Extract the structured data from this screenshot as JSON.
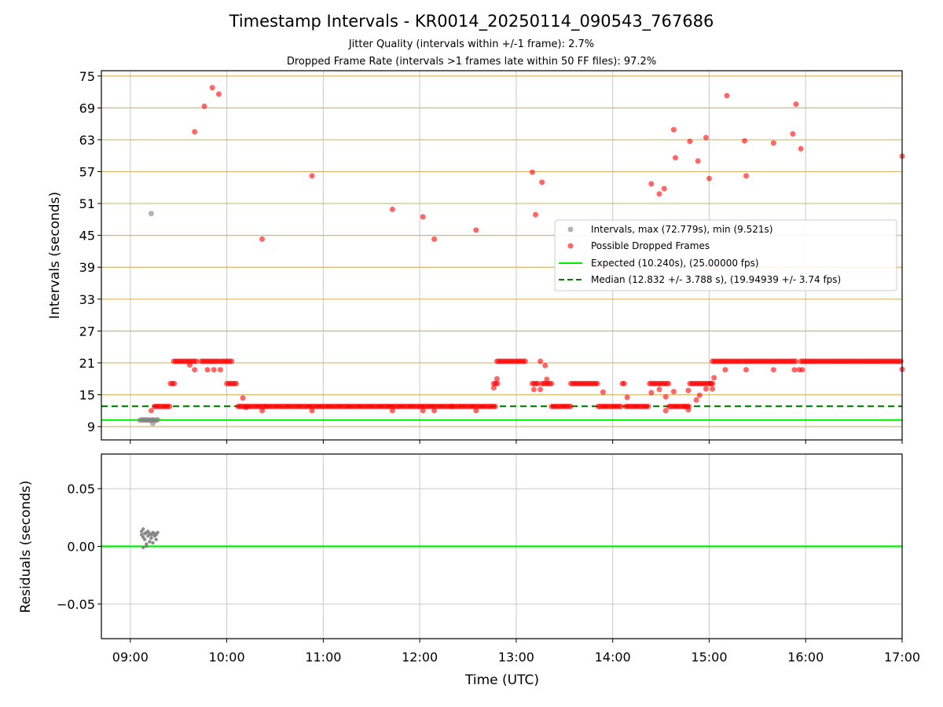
{
  "figure": {
    "title": "Timestamp Intervals - KR0014_20250114_090543_767686",
    "subtitle_jitter": "Jitter Quality (intervals within +/-1 frame): 2.7%",
    "subtitle_dropped": "Dropped Frame Rate (intervals >1 frames late within 50 FF files): 97.2%"
  },
  "colors": {
    "intervals": "#808080",
    "dropped": "#ff0000",
    "expected": "#00ee00",
    "median": "#008000",
    "hline": "#d4b86a",
    "grid": "#c8c8c8"
  },
  "chart_data": [
    {
      "type": "scatter",
      "title": "",
      "xlabel": "Time (UTC)",
      "ylabel": "Intervals (seconds)",
      "x_ticks": [
        "09:00",
        "10:00",
        "11:00",
        "12:00",
        "13:00",
        "14:00",
        "15:00",
        "16:00",
        "17:00"
      ],
      "xlim": [
        "08:42",
        "17:00"
      ],
      "ylim": [
        6.5,
        76
      ],
      "y_ticks": [
        9,
        15,
        21,
        27,
        33,
        39,
        45,
        51,
        57,
        63,
        69,
        75
      ],
      "grid": true,
      "legend_position": "center-right",
      "legend": [
        "Intervals, max (72.779s), min (9.521s)",
        "Possible Dropped Frames",
        "Expected (10.240s), (25.00000 fps)",
        "Median (12.832 +/- 3.788 s), (19.94939 +/- 3.74 fps)"
      ],
      "expected_line": 10.24,
      "median_line": 12.832,
      "series": [
        {
          "name": "Intervals, max (72.779s), min (9.521s)",
          "points": [
            [
              "09:06",
              10.2
            ],
            [
              "09:07",
              10.3
            ],
            [
              "09:08",
              10.2
            ],
            [
              "09:09",
              10.3
            ],
            [
              "09:10",
              10.2
            ],
            [
              "09:11",
              10.3
            ],
            [
              "09:12",
              10.2
            ],
            [
              "09:13",
              10.2
            ],
            [
              "09:14",
              10.3
            ],
            [
              "09:15",
              10.2
            ],
            [
              "09:16",
              10.2
            ],
            [
              "09:17",
              10.3
            ],
            [
              "09:13",
              49.1
            ],
            [
              "09:14",
              9.6
            ]
          ]
        },
        {
          "name": "Possible Dropped Frames",
          "runs": [
            {
              "start": "09:15",
              "end": "09:25",
              "y": 12.8
            },
            {
              "start": "09:25",
              "end": "09:28",
              "y": 17.1
            },
            {
              "start": "09:27",
              "end": "09:42",
              "y": 21.3
            },
            {
              "start": "09:44",
              "end": "09:55",
              "y": 21.3
            },
            {
              "start": "09:56",
              "end": "10:04",
              "y": 21.3
            },
            {
              "start": "10:00",
              "end": "10:07",
              "y": 17.1
            },
            {
              "start": "10:07",
              "end": "10:24",
              "y": 12.8
            },
            {
              "start": "10:24",
              "end": "11:05",
              "y": 12.8
            },
            {
              "start": "11:05",
              "end": "11:40",
              "y": 12.8
            },
            {
              "start": "11:40",
              "end": "12:20",
              "y": 12.8
            },
            {
              "start": "12:20",
              "end": "12:47",
              "y": 12.8
            },
            {
              "start": "12:46",
              "end": "12:49",
              "y": 17.1
            },
            {
              "start": "12:48",
              "end": "13:06",
              "y": 21.3
            },
            {
              "start": "13:10",
              "end": "13:14",
              "y": 17.1
            },
            {
              "start": "13:15",
              "end": "13:16",
              "y": 21.3
            },
            {
              "start": "13:16",
              "end": "13:22",
              "y": 17.1
            },
            {
              "start": "13:22",
              "end": "13:34",
              "y": 12.8
            },
            {
              "start": "13:34",
              "end": "13:51",
              "y": 17.1
            },
            {
              "start": "13:51",
              "end": "14:06",
              "y": 12.8
            },
            {
              "start": "14:06",
              "end": "14:08",
              "y": 17.1
            },
            {
              "start": "14:08",
              "end": "14:23",
              "y": 12.8
            },
            {
              "start": "14:23",
              "end": "14:35",
              "y": 17.1
            },
            {
              "start": "14:35",
              "end": "14:45",
              "y": 12.8
            },
            {
              "start": "14:45",
              "end": "14:48",
              "y": 12.8
            },
            {
              "start": "14:48",
              "end": "15:01",
              "y": 17.1
            },
            {
              "start": "15:01",
              "end": "15:03",
              "y": 17.1
            },
            {
              "start": "15:02",
              "end": "15:20",
              "y": 21.3
            },
            {
              "start": "15:21",
              "end": "15:55",
              "y": 21.3
            },
            {
              "start": "15:57",
              "end": "17:00",
              "y": 21.3
            }
          ],
          "points": [
            [
              "09:40",
              64.5
            ],
            [
              "09:46",
              69.3
            ],
            [
              "09:51",
              72.8
            ],
            [
              "09:55",
              71.6
            ],
            [
              "09:37",
              20.6
            ],
            [
              "09:40",
              19.7
            ],
            [
              "09:48",
              19.7
            ],
            [
              "09:52",
              19.7
            ],
            [
              "09:56",
              19.7
            ],
            [
              "09:13",
              12.0
            ],
            [
              "10:10",
              14.4
            ],
            [
              "10:12",
              12.6
            ],
            [
              "10:22",
              44.3
            ],
            [
              "10:22",
              12.0
            ],
            [
              "10:53",
              56.2
            ],
            [
              "10:53",
              12.0
            ],
            [
              "11:43",
              49.9
            ],
            [
              "11:43",
              12.0
            ],
            [
              "12:02",
              48.5
            ],
            [
              "12:02",
              12.0
            ],
            [
              "12:09",
              44.3
            ],
            [
              "12:09",
              12.0
            ],
            [
              "12:35",
              46.0
            ],
            [
              "12:35",
              12.0
            ],
            [
              "12:46",
              16.3
            ],
            [
              "12:48",
              18.0
            ],
            [
              "13:10",
              56.9
            ],
            [
              "13:12",
              48.9
            ],
            [
              "13:16",
              55.0
            ],
            [
              "13:15",
              16.0
            ],
            [
              "13:18",
              20.5
            ],
            [
              "13:19",
              17.9
            ],
            [
              "13:11",
              16.0
            ],
            [
              "13:54",
              15.5
            ],
            [
              "14:09",
              14.5
            ],
            [
              "14:24",
              54.7
            ],
            [
              "14:29",
              52.8
            ],
            [
              "14:32",
              53.8
            ],
            [
              "14:24",
              15.4
            ],
            [
              "14:29",
              16.0
            ],
            [
              "14:33",
              14.6
            ],
            [
              "14:33",
              12.0
            ],
            [
              "14:38",
              64.9
            ],
            [
              "14:39",
              59.6
            ],
            [
              "14:48",
              62.7
            ],
            [
              "14:47",
              15.8
            ],
            [
              "14:47",
              12.2
            ],
            [
              "14:53",
              59.0
            ],
            [
              "14:58",
              63.4
            ],
            [
              "15:00",
              55.7
            ],
            [
              "14:54",
              14.9
            ],
            [
              "14:52",
              14.0
            ],
            [
              "14:38",
              15.6
            ],
            [
              "14:58",
              16.1
            ],
            [
              "15:02",
              16.1
            ],
            [
              "15:03",
              18.2
            ],
            [
              "15:11",
              71.3
            ],
            [
              "15:10",
              19.7
            ],
            [
              "15:22",
              62.8
            ],
            [
              "15:23",
              56.2
            ],
            [
              "15:23",
              19.7
            ],
            [
              "15:40",
              62.4
            ],
            [
              "15:40",
              19.7
            ],
            [
              "15:52",
              64.1
            ],
            [
              "15:53",
              19.7
            ],
            [
              "15:54",
              69.7
            ],
            [
              "15:56",
              19.7
            ],
            [
              "15:57",
              61.3
            ],
            [
              "15:58",
              19.7
            ],
            [
              "17:00",
              59.9
            ],
            [
              "17:00",
              19.8
            ]
          ]
        }
      ]
    },
    {
      "type": "scatter",
      "title": "",
      "xlabel": "",
      "ylabel": "Residuals (seconds)",
      "ylim": [
        -0.08,
        0.08
      ],
      "y_ticks": [
        "0.05",
        "0.00",
        "−0.05"
      ],
      "y_tick_values": [
        0.05,
        0.0,
        -0.05
      ],
      "zero_line": 0.0,
      "series": [
        {
          "name": "",
          "points": [
            [
              "09:07",
              0.01
            ],
            [
              "09:07",
              0.013
            ],
            [
              "09:08",
              0.008
            ],
            [
              "09:08",
              0.015
            ],
            [
              "09:09",
              0.006
            ],
            [
              "09:09",
              0.011
            ],
            [
              "09:10",
              0.012
            ],
            [
              "09:10",
              0.002
            ],
            [
              "09:11",
              0.009
            ],
            [
              "09:11",
              0.013
            ],
            [
              "09:12",
              0.011
            ],
            [
              "09:12",
              0.004
            ],
            [
              "09:13",
              0.01
            ],
            [
              "09:13",
              0.007
            ],
            [
              "09:14",
              0.012
            ],
            [
              "09:14",
              0.003
            ],
            [
              "09:15",
              0.009
            ],
            [
              "09:15",
              0.011
            ],
            [
              "09:16",
              0.006
            ],
            [
              "09:16",
              0.01
            ],
            [
              "09:17",
              0.012
            ],
            [
              "09:08",
              -0.001
            ],
            [
              "09:10",
              0.0
            ]
          ]
        }
      ]
    }
  ]
}
